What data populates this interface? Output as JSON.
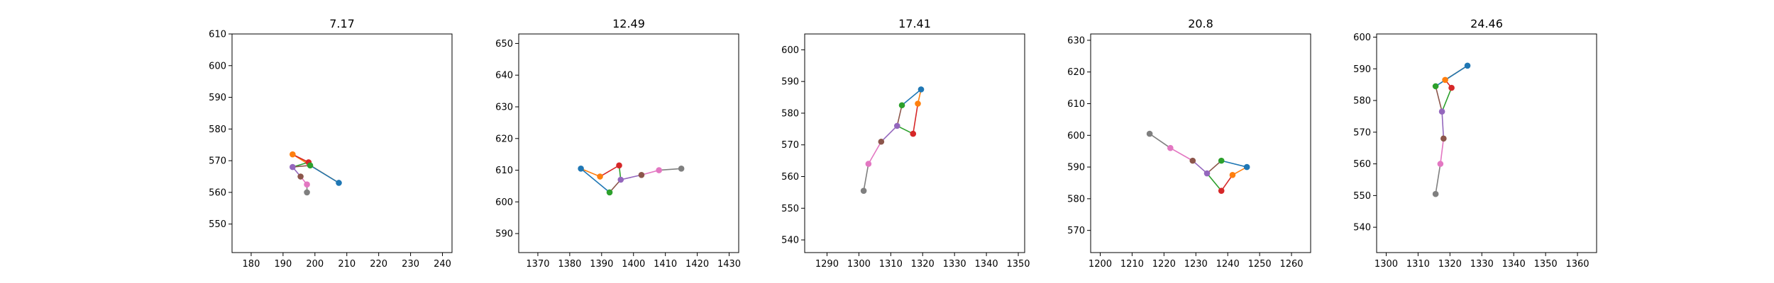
{
  "chart_data": [
    {
      "type": "line",
      "title": "7.17",
      "xlim": [
        174,
        243
      ],
      "ylim": [
        541,
        610
      ],
      "xticks": [
        180,
        190,
        200,
        210,
        220,
        230,
        240
      ],
      "yticks": [
        550,
        560,
        570,
        580,
        590,
        600,
        610
      ],
      "points": [
        [
          207.5,
          563
        ],
        [
          193,
          572
        ],
        [
          198,
          569.5
        ],
        [
          198.5,
          568.5
        ],
        [
          193,
          568
        ],
        [
          195.5,
          565
        ],
        [
          197.5,
          562.5
        ],
        [
          197.5,
          560
        ]
      ]
    },
    {
      "type": "line",
      "title": "12.49",
      "xlim": [
        1364,
        1433
      ],
      "ylim": [
        584,
        653
      ],
      "xticks": [
        1370,
        1380,
        1390,
        1400,
        1410,
        1420,
        1430
      ],
      "yticks": [
        590,
        600,
        610,
        620,
        630,
        640,
        650
      ],
      "points": [
        [
          1383.5,
          610.5
        ],
        [
          1389.5,
          608
        ],
        [
          1395.5,
          611.5
        ],
        [
          1392.5,
          603
        ],
        [
          1396,
          607
        ],
        [
          1402.5,
          608.5
        ],
        [
          1408,
          610
        ],
        [
          1415,
          610.5
        ]
      ]
    },
    {
      "type": "line",
      "title": "17.41",
      "xlim": [
        1283,
        1352
      ],
      "ylim": [
        536,
        605
      ],
      "xticks": [
        1290,
        1300,
        1310,
        1320,
        1330,
        1340,
        1350
      ],
      "yticks": [
        540,
        550,
        560,
        570,
        580,
        590,
        600
      ],
      "points": [
        [
          1319.5,
          587.5
        ],
        [
          1318.5,
          583
        ],
        [
          1317,
          573.5
        ],
        [
          1313.5,
          582.5
        ],
        [
          1312,
          576
        ],
        [
          1307,
          571
        ],
        [
          1303,
          564
        ],
        [
          1301.5,
          555.5
        ]
      ]
    },
    {
      "type": "line",
      "title": "20.8",
      "xlim": [
        1197,
        1266
      ],
      "ylim": [
        563,
        632
      ],
      "xticks": [
        1200,
        1210,
        1220,
        1230,
        1240,
        1250,
        1260
      ],
      "yticks": [
        570,
        580,
        590,
        600,
        610,
        620,
        630
      ],
      "points": [
        [
          1246,
          590
        ],
        [
          1241.5,
          587.5
        ],
        [
          1238,
          582.5
        ],
        [
          1238,
          592
        ],
        [
          1233.5,
          588
        ],
        [
          1229,
          592
        ],
        [
          1222,
          596
        ],
        [
          1215.5,
          600.5
        ]
      ]
    },
    {
      "type": "line",
      "title": "24.46",
      "xlim": [
        1297,
        1366
      ],
      "ylim": [
        532,
        601
      ],
      "xticks": [
        1300,
        1310,
        1320,
        1330,
        1340,
        1350,
        1360
      ],
      "yticks": [
        540,
        550,
        560,
        570,
        580,
        590,
        600
      ],
      "points": [
        [
          1325.5,
          591
        ],
        [
          1318.5,
          586.5
        ],
        [
          1320.5,
          584
        ],
        [
          1315.5,
          584.5
        ],
        [
          1317.5,
          576.5
        ],
        [
          1318,
          568
        ],
        [
          1317,
          560
        ],
        [
          1315.5,
          550.5
        ]
      ]
    }
  ],
  "colors": {
    "points": [
      "#1f77b4",
      "#ff7f0e",
      "#d62728",
      "#2ca02c",
      "#9467bd",
      "#8c564b",
      "#e377c2",
      "#7f7f7f"
    ],
    "edges": [
      "#ff7f0e",
      "#d62728",
      "#2ca02c",
      "#1f77b4",
      "#8c564b",
      "#9467bd",
      "#e377c2",
      "#7f7f7f"
    ]
  },
  "edges": [
    [
      0,
      1
    ],
    [
      1,
      2
    ],
    [
      2,
      4
    ],
    [
      0,
      3
    ],
    [
      3,
      4
    ],
    [
      4,
      5
    ],
    [
      5,
      6
    ],
    [
      6,
      7
    ]
  ]
}
